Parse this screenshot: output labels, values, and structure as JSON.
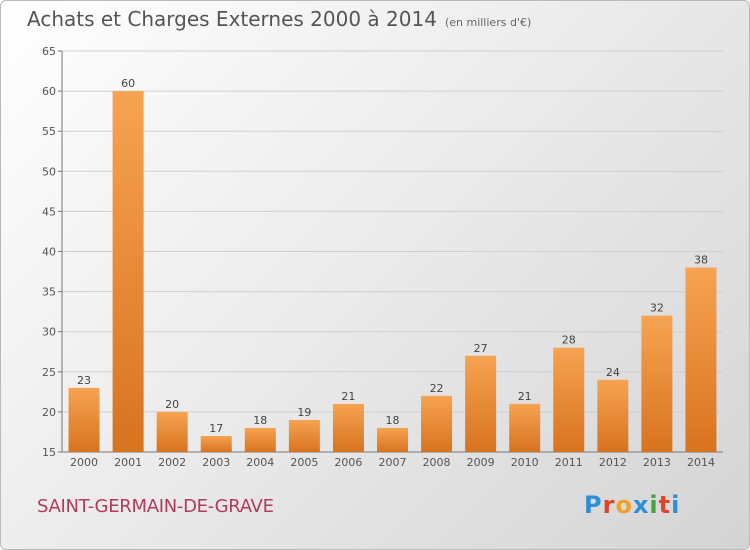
{
  "header": {
    "title": "Achats et Charges Externes 2000 à 2014",
    "subtitle": "(en milliers d'€)"
  },
  "footer": {
    "place": "SAINT-GERMAIN-DE-GRAVE",
    "logo_letters": [
      "P",
      "r",
      "o",
      "x",
      "i",
      "t",
      "i"
    ],
    "logo_colors": [
      "#2e8fd6",
      "#e0452c",
      "#efa12a",
      "#2e8fd6",
      "#43a33e",
      "#e0452c",
      "#2e8fd6"
    ]
  },
  "colors": {
    "bar_top": "#f6a352",
    "bar_bottom": "#d8731f",
    "grid": "#cfcfcf"
  },
  "chart_data": {
    "type": "bar",
    "categories": [
      "2000",
      "2001",
      "2002",
      "2003",
      "2004",
      "2005",
      "2006",
      "2007",
      "2008",
      "2009",
      "2010",
      "2011",
      "2012",
      "2013",
      "2014"
    ],
    "values": [
      23,
      60,
      20,
      17,
      18,
      19,
      21,
      18,
      22,
      27,
      21,
      28,
      24,
      32,
      38
    ],
    "ylim": [
      15,
      65
    ],
    "yticks": [
      15,
      20,
      25,
      30,
      35,
      40,
      45,
      50,
      55,
      60,
      65
    ],
    "grid": true
  }
}
